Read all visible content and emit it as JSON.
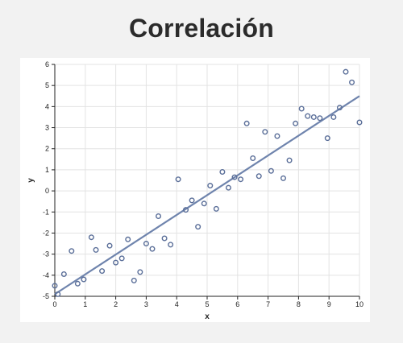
{
  "title": "Correlación",
  "chart_data": {
    "type": "scatter",
    "xlabel": "x",
    "ylabel": "y",
    "xlim": [
      0,
      10
    ],
    "ylim": [
      -5,
      6
    ],
    "xticks": [
      0,
      1,
      2,
      3,
      4,
      5,
      6,
      7,
      8,
      9,
      10
    ],
    "yticks": [
      -5,
      -4,
      -3,
      -2,
      -1,
      0,
      1,
      2,
      3,
      4,
      5,
      6
    ],
    "grid": true,
    "colors": {
      "point": "#5b6f99",
      "line": "#6f84ad",
      "grid": "#e3e3e3",
      "axis": "#222222"
    },
    "series": [
      {
        "marker": "circle-open",
        "points": [
          [
            0.0,
            -4.5
          ],
          [
            0.1,
            -4.9
          ],
          [
            0.3,
            -3.95
          ],
          [
            0.55,
            -2.85
          ],
          [
            0.75,
            -4.4
          ],
          [
            0.95,
            -4.2
          ],
          [
            1.2,
            -2.2
          ],
          [
            1.35,
            -2.8
          ],
          [
            1.55,
            -3.8
          ],
          [
            1.8,
            -2.6
          ],
          [
            2.0,
            -3.4
          ],
          [
            2.2,
            -3.2
          ],
          [
            2.4,
            -2.3
          ],
          [
            2.6,
            -4.25
          ],
          [
            2.8,
            -3.85
          ],
          [
            3.0,
            -2.5
          ],
          [
            3.2,
            -2.75
          ],
          [
            3.4,
            -1.2
          ],
          [
            3.6,
            -2.25
          ],
          [
            3.8,
            -2.55
          ],
          [
            4.05,
            0.55
          ],
          [
            4.3,
            -0.9
          ],
          [
            4.5,
            -0.45
          ],
          [
            4.7,
            -1.7
          ],
          [
            4.9,
            -0.6
          ],
          [
            5.1,
            0.25
          ],
          [
            5.3,
            -0.85
          ],
          [
            5.5,
            0.9
          ],
          [
            5.7,
            0.15
          ],
          [
            5.9,
            0.65
          ],
          [
            6.1,
            0.55
          ],
          [
            6.3,
            3.2
          ],
          [
            6.5,
            1.55
          ],
          [
            6.7,
            0.7
          ],
          [
            6.9,
            2.8
          ],
          [
            7.1,
            0.95
          ],
          [
            7.3,
            2.6
          ],
          [
            7.5,
            0.6
          ],
          [
            7.7,
            1.45
          ],
          [
            7.9,
            3.2
          ],
          [
            8.1,
            3.9
          ],
          [
            8.3,
            3.55
          ],
          [
            8.5,
            3.5
          ],
          [
            8.7,
            3.45
          ],
          [
            8.95,
            2.5
          ],
          [
            9.15,
            3.5
          ],
          [
            9.35,
            3.95
          ],
          [
            9.55,
            5.65
          ],
          [
            9.75,
            5.15
          ],
          [
            10.0,
            3.25
          ]
        ]
      }
    ],
    "trend_line": {
      "x": [
        0,
        10
      ],
      "y": [
        -4.9,
        4.5
      ]
    }
  }
}
